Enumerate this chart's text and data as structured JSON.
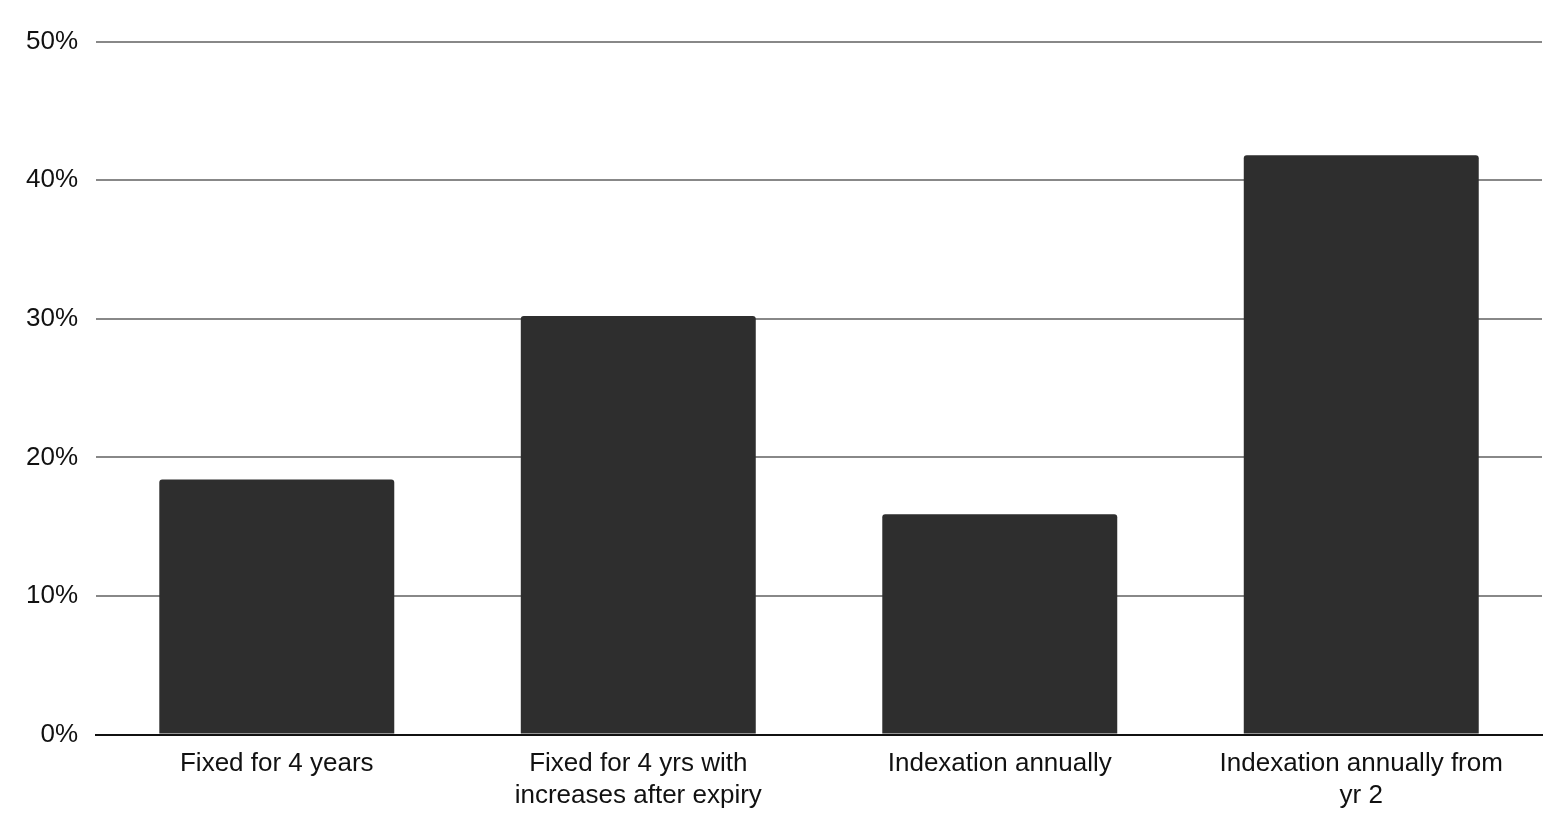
{
  "chart_data": {
    "type": "bar",
    "categories": [
      "Fixed for 4 years",
      "Fixed for 4 yrs with increases after expiry",
      "Indexation annually",
      "Indexation annually from yr 2"
    ],
    "values": [
      18.4,
      30.2,
      15.9,
      41.8
    ],
    "color": "#2e2e2e",
    "ylim": [
      0,
      50
    ],
    "yticks": [
      {
        "value": 0,
        "label": "0%"
      },
      {
        "value": 10,
        "label": "10%"
      },
      {
        "value": 20,
        "label": "20%"
      },
      {
        "value": 30,
        "label": "30%"
      },
      {
        "value": 40,
        "label": "40%"
      },
      {
        "value": 50,
        "label": "50%"
      }
    ],
    "grid": "y",
    "legend": false
  }
}
